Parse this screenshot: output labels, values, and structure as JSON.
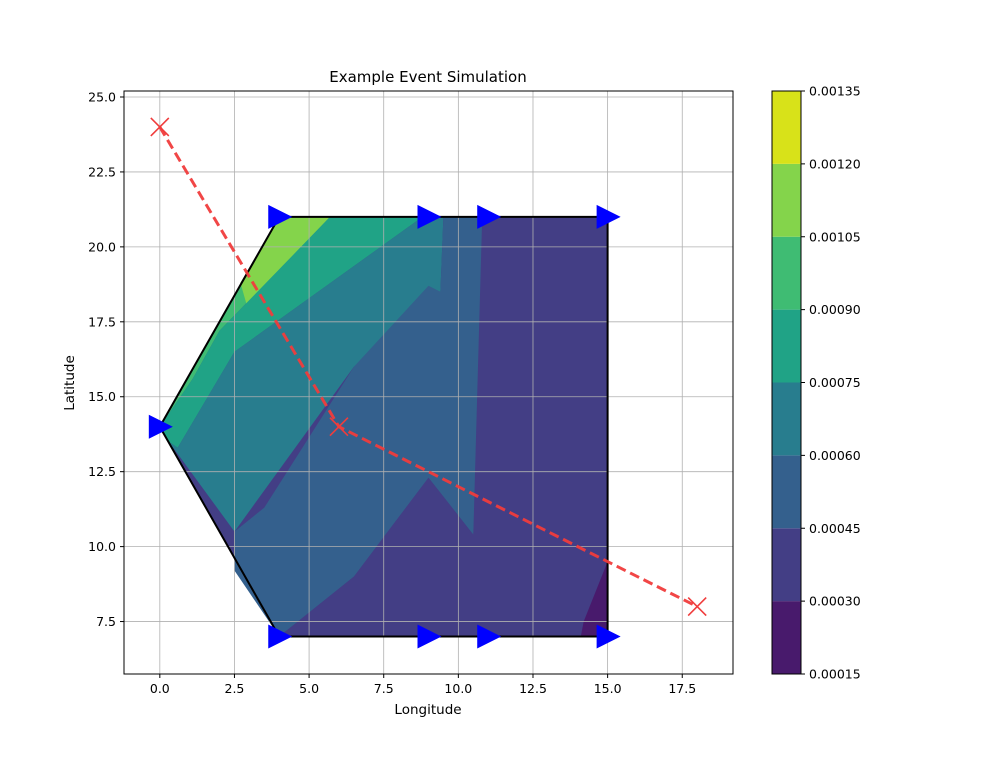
{
  "chart_data": {
    "type": "contour",
    "title": "Example Event Simulation",
    "xlabel": "Longitude",
    "ylabel": "Latitude",
    "xlim": [
      -1.2,
      19.2
    ],
    "ylim": [
      5.75,
      25.2
    ],
    "grid": true,
    "x_ticks": [
      "0.0",
      "2.5",
      "5.0",
      "7.5",
      "10.0",
      "12.5",
      "15.0",
      "17.5"
    ],
    "x_tick_values": [
      0,
      2.5,
      5,
      7.5,
      10,
      12.5,
      15,
      17.5
    ],
    "y_ticks": [
      "7.5",
      "10.0",
      "12.5",
      "15.0",
      "17.5",
      "20.0",
      "22.5",
      "25.0"
    ],
    "y_tick_values": [
      7.5,
      10,
      12.5,
      15,
      17.5,
      20,
      22.5,
      25
    ],
    "colorbar": {
      "levels": [
        0.00015,
        0.0003,
        0.00045,
        0.0006,
        0.00075,
        0.0009,
        0.00105,
        0.0012,
        0.00135
      ],
      "tick_labels": [
        "0.00015",
        "0.00030",
        "0.00045",
        "0.00060",
        "0.00075",
        "0.00090",
        "0.00105",
        "0.00120",
        "0.00135"
      ],
      "colors": [
        "#481a6c",
        "#433e85",
        "#34608d",
        "#287d8e",
        "#20a386",
        "#3fbc73",
        "#84d44b",
        "#d8e219"
      ]
    },
    "domain_boundary": [
      [
        0,
        14
      ],
      [
        4,
        21
      ],
      [
        15,
        21
      ],
      [
        15,
        7
      ],
      [
        4,
        7
      ],
      [
        0,
        14
      ]
    ],
    "contour_regions": [
      {
        "level_index": 5,
        "points": [
          [
            0,
            14
          ],
          [
            4,
            21
          ],
          [
            5.7,
            21
          ],
          [
            2.0,
            17.2
          ],
          [
            1.1,
            15.6
          ]
        ]
      },
      {
        "level_index": 6,
        "points": [
          [
            2.7,
            18.8
          ],
          [
            4,
            21
          ],
          [
            5.7,
            21
          ],
          [
            2.9,
            18.1
          ]
        ]
      },
      {
        "level_index": 4,
        "points": [
          [
            0,
            14
          ],
          [
            1.1,
            15.6
          ],
          [
            2.0,
            17.2
          ],
          [
            5.7,
            21
          ],
          [
            8.8,
            21
          ],
          [
            2.5,
            16.5
          ],
          [
            0.6,
            13.3
          ],
          [
            0.3,
            13.5
          ]
        ]
      },
      {
        "level_index": 3,
        "points": [
          [
            0.3,
            13.5
          ],
          [
            0.6,
            13.3
          ],
          [
            2.5,
            16.5
          ],
          [
            8.8,
            21
          ],
          [
            9.5,
            21
          ],
          [
            9.4,
            18.5
          ],
          [
            6.5,
            16.0
          ],
          [
            2.5,
            10.5
          ]
        ]
      },
      {
        "level_index": 2,
        "points": [
          [
            2.5,
            10.5
          ],
          [
            3.5,
            11.3
          ],
          [
            6.5,
            16.0
          ],
          [
            9.0,
            18.7
          ],
          [
            9.4,
            18.5
          ],
          [
            9.5,
            21
          ],
          [
            10.8,
            21
          ],
          [
            10.8,
            14.5
          ],
          [
            10.5,
            10.4
          ],
          [
            9.0,
            12.3
          ],
          [
            6.5,
            9.0
          ],
          [
            4.0,
            7.0
          ],
          [
            2.5,
            9.2
          ]
        ]
      },
      {
        "level_index": 1,
        "points": [
          [
            4.0,
            7.0
          ],
          [
            6.5,
            9.0
          ],
          [
            9.0,
            12.3
          ],
          [
            10.5,
            10.4
          ],
          [
            10.6,
            14.0
          ],
          [
            10.8,
            21
          ],
          [
            15,
            21
          ],
          [
            15,
            9.5
          ],
          [
            14.2,
            7.5
          ],
          [
            14.1,
            7.0
          ]
        ]
      },
      {
        "level_index": 0,
        "points": [
          [
            14.1,
            7.0
          ],
          [
            14.2,
            7.5
          ],
          [
            15,
            9.5
          ],
          [
            15,
            7.0
          ]
        ]
      }
    ],
    "triangle_markers": [
      [
        4,
        21
      ],
      [
        9,
        21
      ],
      [
        11,
        21
      ],
      [
        15,
        21
      ],
      [
        0,
        14
      ],
      [
        4,
        7
      ],
      [
        9,
        7
      ],
      [
        11,
        7
      ],
      [
        15,
        7
      ]
    ],
    "event_track": {
      "points": [
        [
          0,
          24
        ],
        [
          6,
          14
        ],
        [
          18,
          8
        ]
      ],
      "color": "#f03c3c",
      "style": "dashed",
      "marker": "x"
    },
    "colors": {
      "boundary": "#000000",
      "triangle": "#0000ff",
      "grid": "#b0b0b0",
      "plot_background": "#ffffff"
    }
  }
}
